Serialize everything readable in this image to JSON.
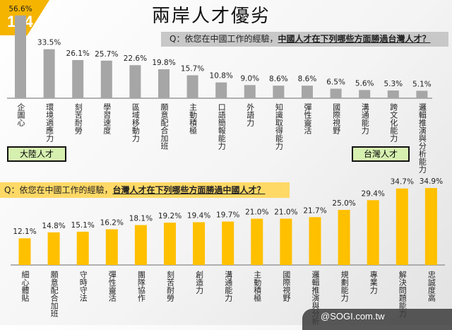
{
  "logo": {
    "text": "104",
    "color": "#f5b400"
  },
  "title": "兩岸人才優劣",
  "questions": {
    "top": {
      "prefix": "Q：依您在中國工作的經驗，",
      "emphasis": "中國人才在下列哪些方面勝過台灣人才？"
    },
    "bottom": {
      "prefix": "Q：依您在中國工作的經驗，",
      "emphasis": "台灣人才在下列哪些方面勝過中國人才？"
    }
  },
  "tags": {
    "mainland": "大陸人才",
    "taiwan": "台灣人才"
  },
  "watermark": "@SOGI.com.tw",
  "chart_data": [
    {
      "type": "bar",
      "color": "#a6a6a6",
      "categories": [
        "企圖心",
        "環境適應力",
        "刻苦耐勞",
        "學習速度",
        "區域移動力",
        "願意配合加班",
        "主動積極",
        "口語簡報能力",
        "外語力",
        "知識取得能力",
        "彈性靈活",
        "國際視野",
        "溝通能力",
        "跨文化能力",
        "邏輯推演與分析能力"
      ],
      "values": [
        56.6,
        33.5,
        26.1,
        25.7,
        22.6,
        19.8,
        15.7,
        10.8,
        9.0,
        8.6,
        8.6,
        6.5,
        5.6,
        5.3,
        5.1
      ],
      "data_labels": [
        "56.6%",
        "33.5%",
        "26.1%",
        "25.7%",
        "22.6%",
        "19.8%",
        "15.7%",
        "10.8%",
        "9.0%",
        "8.6%",
        "8.6%",
        "6.5%",
        "5.6%",
        "5.3%",
        "5.1%"
      ]
    },
    {
      "type": "bar",
      "color": "#ffc000",
      "categories": [
        "細心體貼",
        "願意配合加班",
        "守時守法",
        "彈性靈活",
        "團隊協作",
        "刻苦耐勞",
        "創造力",
        "溝通能力",
        "主動積極",
        "國際視野",
        "邏輯推演與分析",
        "規劃能力",
        "專業力",
        "解決問題能力",
        "忠誠度高"
      ],
      "values": [
        12.1,
        14.8,
        15.1,
        16.2,
        18.1,
        19.2,
        19.4,
        19.7,
        21.0,
        21.0,
        21.7,
        25.0,
        29.4,
        34.7,
        34.9
      ],
      "data_labels": [
        "12.1%",
        "14.8%",
        "15.1%",
        "16.2%",
        "18.1%",
        "19.2%",
        "19.4%",
        "19.7%",
        "21.0%",
        "21.0%",
        "21.7%",
        "25.0%",
        "29.4%",
        "34.7%",
        "34.9%"
      ]
    }
  ]
}
